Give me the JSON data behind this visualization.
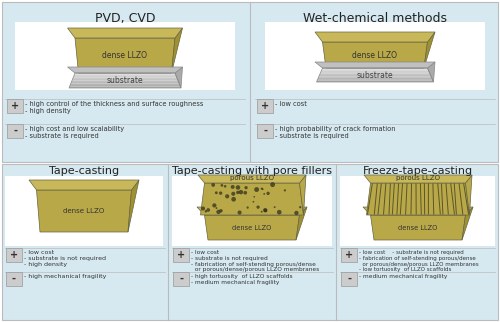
{
  "bg_color": "#d6e9f0",
  "white": "#ffffff",
  "llzo_top_color": "#c8b85a",
  "llzo_front_color": "#b8a848",
  "llzo_side_color": "#a09030",
  "substrate_top": "#c8c8c8",
  "substrate_front": "#b0b0b0",
  "substrate_side": "#989898",
  "porous_top": "#c8b85a",
  "porous_front": "#b8a848",
  "sign_box": "#cccccc",
  "text_color": "#333333",
  "divider": "#aaaaaa",
  "title_top_left": "PVD, CVD",
  "title_top_right": "Wet-chemical methods",
  "title_bot_left": "Tape-casting",
  "title_bot_mid": "Tape-casting with pore fillers",
  "title_bot_right": "Freeze-tape-casting",
  "pvd_plus_text": "- high control of the thickness and surface roughness\n- high density",
  "pvd_minus_text": "- high cost and low scalability\n- substrate is required",
  "wet_plus_text": "- low cost",
  "wet_minus_text": "- high probability of crack formation\n- substrate is required",
  "tape_plus_text": "- low cost\n- substrate is not required\n- high density",
  "tape_minus_text": "- high mechanical fragility",
  "pore_plus_text": "- low cost\n- substrate is not required\n- fabrication of self-stending porous/dense\n  or porous/dense/porous LLZO membranes",
  "pore_minus_text": "- high tortuosity  of LLZO scaffolds\n- medium mechanical fragility",
  "freeze_plus_text": "- low cost    - substrate is not required\n- fabrication of self-stending porous/dense\n  or porous/dense/porous LLZO membranes\n- low tortuosity  of LLZO scaffolds",
  "freeze_minus_text": "- medium mechanical fragility"
}
